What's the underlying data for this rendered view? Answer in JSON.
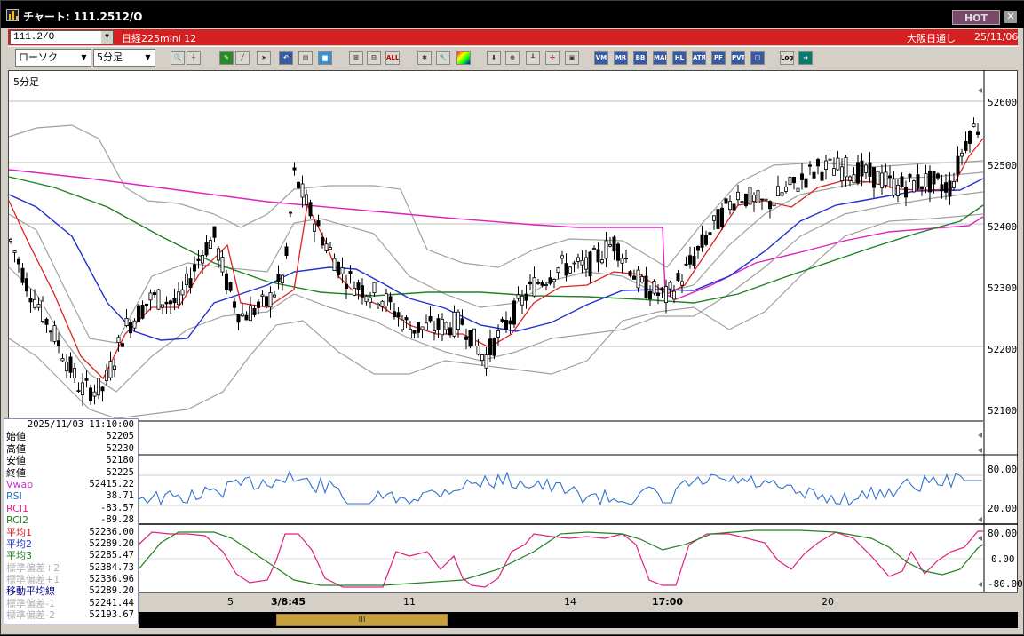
{
  "window": {
    "title": "チャート: 111.2512/O",
    "hot_label": "HOT",
    "close_label": "✕"
  },
  "symbol_bar": {
    "code": "111.2/O",
    "name": "日経225mini 12",
    "market": "大阪日通し",
    "date": "25/11/06"
  },
  "toolbar": {
    "chart_type": "ローソク",
    "period": "5分足",
    "buttons": [
      "VM",
      "MR",
      "BB",
      "MAE",
      "HL",
      "ATR",
      "PF",
      "PVT",
      "□",
      "Log"
    ],
    "icon_names": [
      "magnifier-icon",
      "crosshair-icon",
      "pen-icon",
      "draw-line-icon",
      "cursor-icon",
      "undo-icon",
      "document-icon",
      "trash-icon",
      "candle-icon",
      "bar-icon",
      "all-icon",
      "settings-icon",
      "wrench-icon",
      "palette-icon",
      "download-icon",
      "zoom-icon",
      "chart-icon",
      "split-icon",
      "lock-icon",
      "export-icon"
    ],
    "all_label": "ALL"
  },
  "chart": {
    "period_label": "5分足",
    "price_axis": [
      "52600",
      "52500",
      "52400",
      "52300",
      "52200",
      "52100"
    ],
    "rsi_axis": [
      "80.00",
      "20.00"
    ],
    "rci_axis": [
      "80.00",
      "0.00",
      "-80.00"
    ],
    "time_labels": [
      "5",
      "3/8:45",
      "11",
      "14",
      "17:00",
      "20"
    ],
    "colors": {
      "candle_up": "#ffffff",
      "candle_down": "#000000",
      "ma1": "#e02020",
      "ma2": "#2030d0",
      "ma3": "#208020",
      "ma_long": "#e020c0",
      "bollinger": "#a0a0a0",
      "vwap": "#e020c0",
      "rsi": "#3070d0",
      "rci1": "#e02080",
      "rci2": "#208020"
    }
  },
  "info_panel": {
    "datetime": "2025/11/03  11:10:00",
    "rows": [
      {
        "label": "始値",
        "value": "52205",
        "color": "#000000"
      },
      {
        "label": "高値",
        "value": "52230",
        "color": "#000000"
      },
      {
        "label": "安値",
        "value": "52180",
        "color": "#000000"
      },
      {
        "label": "終値",
        "value": "52225",
        "color": "#000000"
      },
      {
        "label": "Vwap",
        "value": "52415.22",
        "color": "#d030d0"
      },
      {
        "label": "RSI",
        "value": "38.71",
        "color": "#3070d0"
      },
      {
        "label": "RCI1",
        "value": "-83.57",
        "color": "#e02080"
      },
      {
        "label": "RCI2",
        "value": "-89.28",
        "color": "#208020"
      },
      {
        "label": "平均1",
        "value": "52236.00",
        "color": "#e02020"
      },
      {
        "label": "平均2",
        "value": "52289.20",
        "color": "#2030d0"
      },
      {
        "label": "平均3",
        "value": "52285.47",
        "color": "#208020"
      },
      {
        "label": "標準偏差+2",
        "value": "52384.73",
        "color": "#b0b0b0"
      },
      {
        "label": "標準偏差+1",
        "value": "52336.96",
        "color": "#b0b0b0"
      },
      {
        "label": "移動平均線",
        "value": "52289.20",
        "color": "#000080"
      },
      {
        "label": "標準偏差-1",
        "value": "52241.44",
        "color": "#b0b0b0"
      },
      {
        "label": "標準偏差-2",
        "value": "52193.67",
        "color": "#b0b0b0"
      }
    ]
  },
  "scrollbar": {
    "thumb_label": "III"
  }
}
